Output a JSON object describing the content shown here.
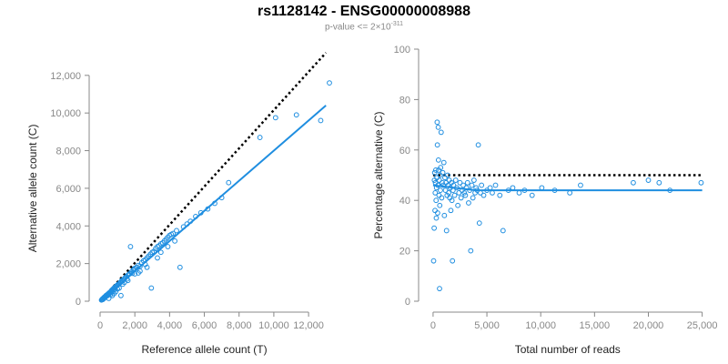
{
  "header": {
    "title": "rs1128142 - ENSG00000008988",
    "subtitle_prefix": "p-value <= 2",
    "subtitle_times": "×",
    "subtitle_base": "10",
    "subtitle_exp": "-311"
  },
  "colors": {
    "points": "#1f8ee0",
    "fit_line": "#1f8ee0",
    "reference_line": "#000000",
    "axis": "#888888"
  },
  "chart_data": [
    {
      "type": "scatter",
      "xlabel": "Reference allele count (T)",
      "ylabel": "Alternative allele count (C)",
      "xlim": [
        0,
        13200
      ],
      "ylim": [
        0,
        13200
      ],
      "xticks": [
        0,
        2000,
        4000,
        6000,
        8000,
        10000,
        12000
      ],
      "xtick_labels": [
        "0",
        "2,000",
        "4,000",
        "6,000",
        "8,000",
        "10,000",
        "12,000"
      ],
      "yticks": [
        0,
        2000,
        4000,
        6000,
        8000,
        10000,
        12000
      ],
      "ytick_labels": [
        "0",
        "2,000",
        "4,000",
        "6,000",
        "8,000",
        "10,000",
        "12,000"
      ],
      "fit_line": [
        [
          0,
          0
        ],
        [
          13000,
          10400
        ]
      ],
      "reference_line": [
        [
          0,
          0
        ],
        [
          13000,
          13200
        ]
      ],
      "points": [
        [
          80,
          60
        ],
        [
          120,
          110
        ],
        [
          150,
          90
        ],
        [
          200,
          180
        ],
        [
          220,
          140
        ],
        [
          250,
          220
        ],
        [
          280,
          200
        ],
        [
          300,
          260
        ],
        [
          320,
          240
        ],
        [
          350,
          310
        ],
        [
          380,
          280
        ],
        [
          400,
          340
        ],
        [
          430,
          300
        ],
        [
          450,
          380
        ],
        [
          480,
          350
        ],
        [
          500,
          420
        ],
        [
          520,
          380
        ],
        [
          550,
          460
        ],
        [
          600,
          480
        ],
        [
          620,
          520
        ],
        [
          650,
          560
        ],
        [
          700,
          600
        ],
        [
          720,
          520
        ],
        [
          750,
          650
        ],
        [
          800,
          700
        ],
        [
          820,
          620
        ],
        [
          850,
          740
        ],
        [
          900,
          780
        ],
        [
          950,
          820
        ],
        [
          1000,
          860
        ],
        [
          1050,
          900
        ],
        [
          1100,
          940
        ],
        [
          1150,
          980
        ],
        [
          1200,
          1020
        ],
        [
          1250,
          1100
        ],
        [
          1300,
          1080
        ],
        [
          1350,
          1150
        ],
        [
          1400,
          1200
        ],
        [
          1450,
          1250
        ],
        [
          1500,
          1300
        ],
        [
          1550,
          1180
        ],
        [
          1600,
          1380
        ],
        [
          1650,
          1420
        ],
        [
          1700,
          1460
        ],
        [
          1750,
          2900
        ],
        [
          1800,
          1550
        ],
        [
          1850,
          1480
        ],
        [
          1900,
          1650
        ],
        [
          1950,
          1700
        ],
        [
          2000,
          1750
        ],
        [
          2100,
          1800
        ],
        [
          2200,
          1900
        ],
        [
          2300,
          1850
        ],
        [
          2400,
          2050
        ],
        [
          2500,
          2150
        ],
        [
          2600,
          2200
        ],
        [
          2700,
          2300
        ],
        [
          2800,
          2400
        ],
        [
          2900,
          2500
        ],
        [
          3000,
          2600
        ],
        [
          2950,
          700
        ],
        [
          3100,
          2650
        ],
        [
          3200,
          2800
        ],
        [
          3300,
          2900
        ],
        [
          3400,
          2950
        ],
        [
          3500,
          3050
        ],
        [
          3600,
          3100
        ],
        [
          3700,
          3200
        ],
        [
          3800,
          3300
        ],
        [
          3900,
          3400
        ],
        [
          4000,
          3500
        ],
        [
          4100,
          3550
        ],
        [
          4200,
          3600
        ],
        [
          4400,
          3750
        ],
        [
          4600,
          1800
        ],
        [
          4800,
          3950
        ],
        [
          5000,
          4100
        ],
        [
          5200,
          4250
        ],
        [
          5500,
          4500
        ],
        [
          5800,
          4700
        ],
        [
          6200,
          4900
        ],
        [
          6600,
          5200
        ],
        [
          7000,
          5500
        ],
        [
          7400,
          6300
        ],
        [
          9200,
          8700
        ],
        [
          10100,
          9750
        ],
        [
          11300,
          9900
        ],
        [
          12700,
          9600
        ],
        [
          13200,
          11600
        ],
        [
          600,
          350
        ],
        [
          900,
          500
        ],
        [
          1100,
          700
        ],
        [
          1300,
          900
        ],
        [
          1600,
          1100
        ],
        [
          2000,
          1450
        ],
        [
          2300,
          1600
        ],
        [
          2600,
          1950
        ],
        [
          3300,
          2300
        ],
        [
          3900,
          2900
        ],
        [
          500,
          150
        ],
        [
          700,
          300
        ],
        [
          1000,
          650
        ],
        [
          1400,
          1000
        ],
        [
          1200,
          300
        ],
        [
          800,
          400
        ],
        [
          2200,
          1500
        ],
        [
          2700,
          1800
        ],
        [
          3500,
          2600
        ],
        [
          4300,
          3200
        ]
      ]
    },
    {
      "type": "scatter",
      "xlabel": "Total number of reads",
      "ylabel": "Percentage alternative (C)",
      "xlim": [
        -500,
        25200
      ],
      "ylim": [
        0,
        100
      ],
      "xticks": [
        0,
        5000,
        10000,
        15000,
        20000,
        25000
      ],
      "xtick_labels": [
        "0",
        "5,000",
        "10,000",
        "15,000",
        "20,000",
        "25,000"
      ],
      "yticks": [
        0,
        20,
        40,
        60,
        80,
        100
      ],
      "ytick_labels": [
        "0",
        "20",
        "40",
        "60",
        "80",
        "100"
      ],
      "fit_line": [
        [
          0,
          46
        ],
        [
          4000,
          44
        ],
        [
          25000,
          44
        ]
      ],
      "reference_line": [
        [
          0,
          50
        ],
        [
          25000,
          50
        ]
      ],
      "points": [
        [
          50,
          16
        ],
        [
          100,
          29
        ],
        [
          120,
          48
        ],
        [
          150,
          51
        ],
        [
          180,
          36
        ],
        [
          200,
          43
        ],
        [
          220,
          47
        ],
        [
          250,
          52
        ],
        [
          280,
          40
        ],
        [
          300,
          33
        ],
        [
          320,
          45
        ],
        [
          350,
          49
        ],
        [
          380,
          71
        ],
        [
          400,
          62
        ],
        [
          420,
          35
        ],
        [
          450,
          46
        ],
        [
          480,
          69
        ],
        [
          500,
          56
        ],
        [
          520,
          52
        ],
        [
          550,
          42
        ],
        [
          580,
          48
        ],
        [
          600,
          5
        ],
        [
          620,
          38
        ],
        [
          650,
          50
        ],
        [
          680,
          44
        ],
        [
          700,
          53
        ],
        [
          750,
          67
        ],
        [
          800,
          41
        ],
        [
          850,
          47
        ],
        [
          900,
          51
        ],
        [
          950,
          46
        ],
        [
          1000,
          55
        ],
        [
          1050,
          34
        ],
        [
          1100,
          49
        ],
        [
          1150,
          44
        ],
        [
          1200,
          47
        ],
        [
          1250,
          28
        ],
        [
          1300,
          42
        ],
        [
          1350,
          50
        ],
        [
          1400,
          46
        ],
        [
          1450,
          43
        ],
        [
          1500,
          48
        ],
        [
          1550,
          41
        ],
        [
          1600,
          45
        ],
        [
          1650,
          36
        ],
        [
          1700,
          47
        ],
        [
          1750,
          40
        ],
        [
          1800,
          16
        ],
        [
          1850,
          44
        ],
        [
          1900,
          46
        ],
        [
          2000,
          42
        ],
        [
          2100,
          48
        ],
        [
          2200,
          45
        ],
        [
          2300,
          38
        ],
        [
          2400,
          43
        ],
        [
          2500,
          47
        ],
        [
          2600,
          41
        ],
        [
          2700,
          44
        ],
        [
          2800,
          46
        ],
        [
          2900,
          43
        ],
        [
          3000,
          42
        ],
        [
          3100,
          45
        ],
        [
          3200,
          47
        ],
        [
          3300,
          39
        ],
        [
          3400,
          44
        ],
        [
          3500,
          20
        ],
        [
          3600,
          46
        ],
        [
          3700,
          41
        ],
        [
          3800,
          48
        ],
        [
          3900,
          43
        ],
        [
          4000,
          45
        ],
        [
          4100,
          44
        ],
        [
          4200,
          62
        ],
        [
          4300,
          31
        ],
        [
          4400,
          43
        ],
        [
          4500,
          46
        ],
        [
          4700,
          42
        ],
        [
          5000,
          44
        ],
        [
          5300,
          45
        ],
        [
          5500,
          43
        ],
        [
          5800,
          46
        ],
        [
          6200,
          42
        ],
        [
          6500,
          28
        ],
        [
          7000,
          44
        ],
        [
          7400,
          45
        ],
        [
          8000,
          43
        ],
        [
          8500,
          44
        ],
        [
          9200,
          42
        ],
        [
          10100,
          45
        ],
        [
          11300,
          44
        ],
        [
          12700,
          43
        ],
        [
          13700,
          46
        ],
        [
          18600,
          47
        ],
        [
          20000,
          48
        ],
        [
          21000,
          47
        ],
        [
          22000,
          44
        ],
        [
          24900,
          47
        ]
      ]
    }
  ]
}
